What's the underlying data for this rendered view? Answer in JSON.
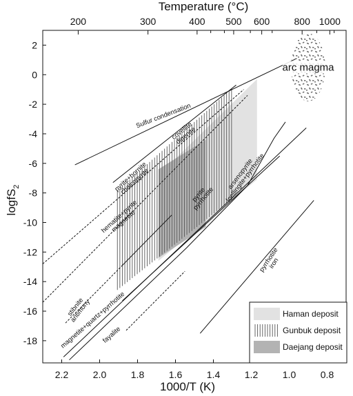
{
  "chart_data": {
    "type": "line",
    "xlabel": "1000/T (K)",
    "ylabel": "logfS",
    "ylabel_subscript": "2",
    "top_axis_label": "Temperature (°C)",
    "xlim": [
      2.3,
      0.7
    ],
    "ylim": [
      -19.5,
      3
    ],
    "x_ticks": [
      "2.2",
      "2.0",
      "1.8",
      "1.6",
      "1.4",
      "1.2",
      "1.0",
      "0.8"
    ],
    "y_ticks": [
      "2",
      "0",
      "-2",
      "-4",
      "-6",
      "-8",
      "-10",
      "-12",
      "-14",
      "-16",
      "-18"
    ],
    "top_ticks": [
      {
        "label": "200",
        "x": 2.113
      },
      {
        "label": "300",
        "x": 1.745
      },
      {
        "label": "400",
        "x": 1.486
      },
      {
        "label": "500",
        "x": 1.293
      },
      {
        "label": "600",
        "x": 1.145
      },
      {
        "label": "800",
        "x": 0.932
      },
      {
        "label": "1000",
        "x": 0.786
      }
    ],
    "top_minor_ticks": [
      1.414,
      1.342,
      1.205,
      1.09,
      0.855,
      0.763
    ],
    "series": [
      {
        "key": "sulfur",
        "label": "Sulfur condensation",
        "dashed": false,
        "points": [
          [
            2.13,
            -6.1
          ],
          [
            0.96,
            1.1
          ]
        ]
      },
      {
        "key": "covellite",
        "label": "covellite",
        "sublabel": "digenite",
        "dashed": false,
        "points": [
          [
            1.93,
            -7.3
          ],
          [
            1.28,
            -0.7
          ]
        ]
      },
      {
        "key": "pyrite_bornite",
        "label": "pyrite+bornite",
        "sublabel": "chalcopyrite",
        "dashed": true,
        "points": [
          [
            2.3,
            -12.8
          ],
          [
            1.24,
            -1.0
          ]
        ]
      },
      {
        "key": "pyrite_pyrrhotite",
        "label": "pyrite",
        "sublabel": "pyrrhotite",
        "dashed": false,
        "points": [
          [
            1.88,
            -15.3
          ],
          [
            1.05,
            -5.5
          ]
        ]
      },
      {
        "key": "arsenopyrite",
        "label": "arsenopyrite",
        "sublabel": "loellingite+pyrrhotite",
        "dashed": false,
        "points": [
          [
            2.16,
            -19.3
          ],
          [
            1.54,
            -11.7
          ],
          [
            1.22,
            -7.5
          ],
          [
            1.08,
            -4.3
          ],
          [
            1.02,
            -3.2
          ]
        ]
      },
      {
        "key": "hematite",
        "label": "hematite+pyrite",
        "sublabel": "magnetite",
        "dashed": true,
        "points": [
          [
            2.3,
            -15.4
          ],
          [
            1.22,
            -1.4
          ]
        ]
      },
      {
        "key": "stibnite",
        "label": "stibnite",
        "sublabel": "antimony",
        "dashed": true,
        "points": [
          [
            2.18,
            -16.8
          ],
          [
            1.88,
            -12.9
          ]
        ]
      },
      {
        "key": "stibnite_solid",
        "label": "",
        "dashed": false,
        "points": [
          [
            1.88,
            -12.9
          ],
          [
            1.62,
            -9.5
          ]
        ]
      },
      {
        "key": "mqp",
        "label": "magnetite+quartz+pyrrhotite",
        "sublabel": "fayalite",
        "dashed": false,
        "points": [
          [
            2.19,
            -19.1
          ],
          [
            0.91,
            -3.6
          ]
        ]
      },
      {
        "key": "mqp_dashed",
        "label": "",
        "dashed": true,
        "points": [
          [
            1.86,
            -17.3
          ],
          [
            1.55,
            -13.3
          ]
        ]
      },
      {
        "key": "pyrrhotite_iron",
        "label": "pyrrhotite",
        "sublabel": "iron",
        "dashed": false,
        "points": [
          [
            1.47,
            -17.5
          ],
          [
            0.87,
            -8.5
          ]
        ]
      }
    ],
    "deposits": [
      {
        "key": "haman",
        "name": "Haman deposit",
        "fill": "#e2e2e2",
        "pattern": "solid",
        "polygon": [
          [
            1.69,
            -12.6
          ],
          [
            1.17,
            -7.1
          ],
          [
            1.17,
            -0.3
          ],
          [
            1.69,
            -6.8
          ]
        ]
      },
      {
        "key": "gunbuk",
        "name": "Gunbuk deposit",
        "fill": "#555555",
        "pattern": "vertical-lines",
        "polygon": [
          [
            1.91,
            -14.6
          ],
          [
            1.3,
            -8.4
          ],
          [
            1.3,
            -0.9
          ],
          [
            1.91,
            -7.9
          ]
        ]
      },
      {
        "key": "daejang",
        "name": "Daejang deposit",
        "fill": "#b3b3b3",
        "pattern": "solid",
        "polygon": [
          [
            1.69,
            -12.4
          ],
          [
            1.44,
            -10.3
          ],
          [
            1.44,
            -4.4
          ],
          [
            1.69,
            -6.4
          ]
        ]
      }
    ],
    "annotation": {
      "text": "arc magma",
      "x": 0.9,
      "y": 0.5,
      "rx": 0.09,
      "ry": 2.3
    },
    "legend_position": "bottom-right",
    "colors": {
      "line": "#111111",
      "haman": "#e2e2e2",
      "daejang": "#b3b3b3",
      "gunbuk_lines": "#555555"
    }
  }
}
